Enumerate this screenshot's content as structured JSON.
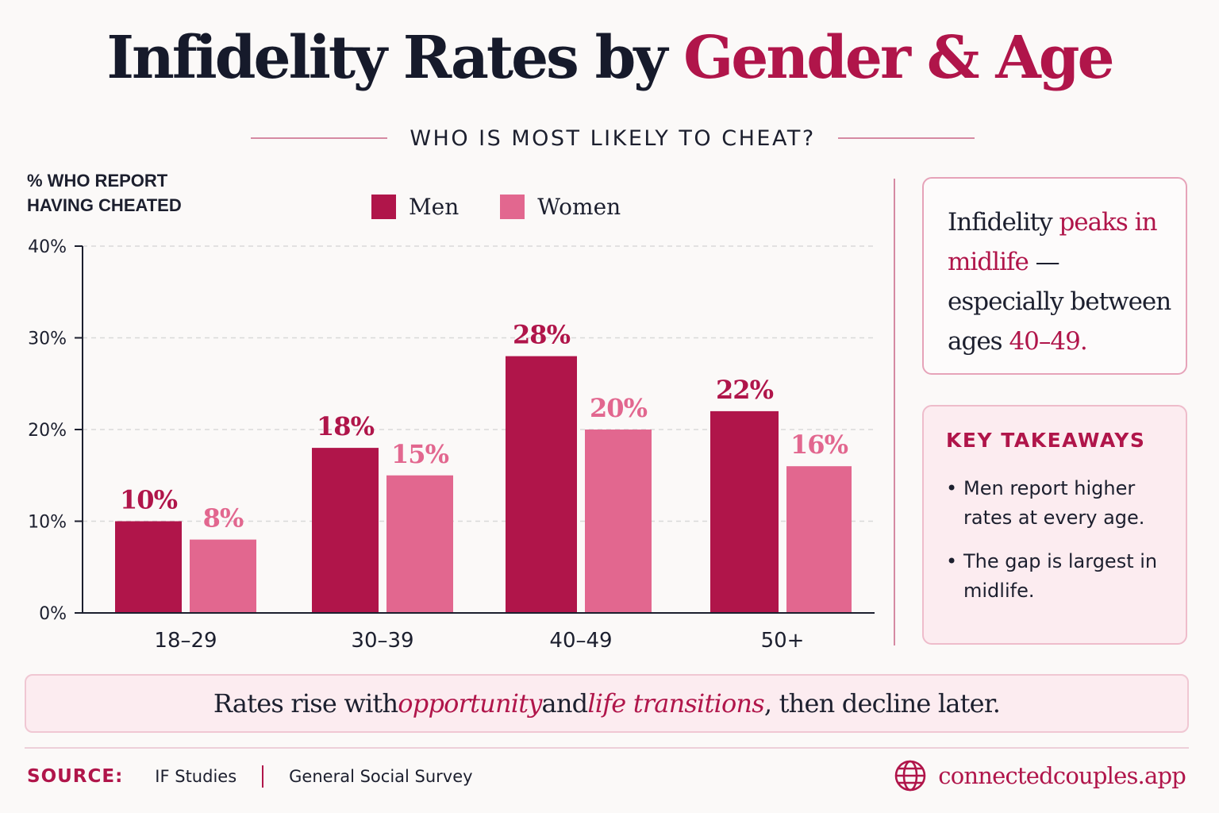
{
  "title": {
    "main": "Infidelity Rates by ",
    "accent": "Gender & Age"
  },
  "subtitle": "WHO IS MOST LIKELY TO CHEAT?",
  "colors": {
    "men": "#b0154a",
    "women": "#e2678f",
    "accent": "#b0154a",
    "text": "#1c1f2e"
  },
  "chart_data": {
    "type": "bar",
    "ylabel": "% WHO REPORT HAVING CHEATED",
    "xlabel": "",
    "categories": [
      "18–29",
      "30–39",
      "40–49",
      "50+"
    ],
    "series": [
      {
        "name": "Men",
        "values": [
          10,
          18,
          28,
          22
        ],
        "labels": [
          "10%",
          "18%",
          "28%",
          "22%"
        ]
      },
      {
        "name": "Women",
        "values": [
          8,
          15,
          20,
          16
        ],
        "labels": [
          "8%",
          "15%",
          "20%",
          "16%"
        ]
      }
    ],
    "ylim": [
      0,
      40
    ],
    "yticks": [
      0,
      10,
      20,
      30,
      40
    ],
    "ytick_labels": [
      "0%",
      "10%",
      "20%",
      "30%",
      "40%"
    ],
    "grid": true,
    "legend_position": "top"
  },
  "callout": {
    "part1": "Infidelity ",
    "accent1": "peaks in midlife",
    "part2": " — especially between ages ",
    "accent2": "40–49."
  },
  "takeaways": {
    "title": "KEY TAKEAWAYS",
    "bullet": "•",
    "items": [
      "Men report higher rates at every age.",
      "The gap is largest in midlife."
    ]
  },
  "note": {
    "part1": "Rates rise with ",
    "em1": "opportunity",
    "part2": " and ",
    "em2": "life transitions",
    "part3": ", then decline later."
  },
  "footer": {
    "source_label": "SOURCE:",
    "sources": [
      "IF Studies",
      "General Social Survey"
    ],
    "brand": "connectedcouples.app",
    "brand_icon": "globe-icon"
  }
}
